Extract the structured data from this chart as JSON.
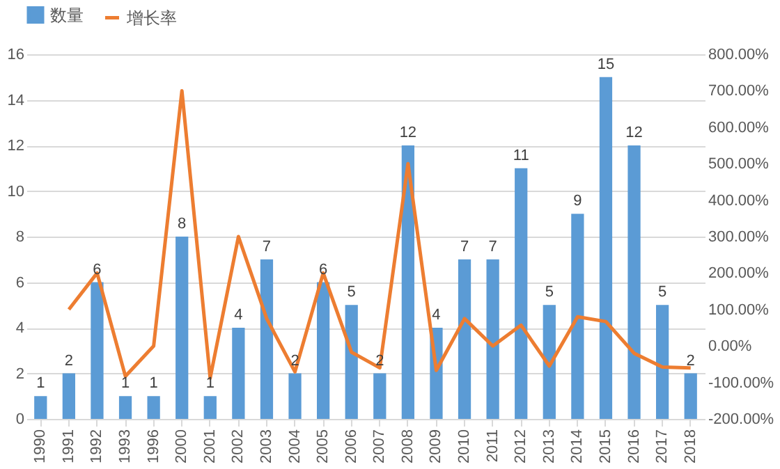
{
  "chart_data": {
    "type": "bar",
    "categories": [
      "1990",
      "1991",
      "1992",
      "1993",
      "1996",
      "2000",
      "2001",
      "2002",
      "2003",
      "2004",
      "2005",
      "2006",
      "2007",
      "2008",
      "2009",
      "2010",
      "2011",
      "2012",
      "2013",
      "2014",
      "2015",
      "2016",
      "2017",
      "2018"
    ],
    "series": [
      {
        "name": "数量",
        "color": "#5b9bd5",
        "values": [
          1,
          2,
          6,
          1,
          1,
          8,
          1,
          4,
          7,
          2,
          6,
          5,
          2,
          12,
          4,
          7,
          7,
          11,
          5,
          9,
          15,
          12,
          5,
          2
        ],
        "value_labels": [
          "1",
          "2",
          "6",
          "1",
          "1",
          "8",
          "1",
          "4",
          "7",
          "2",
          "6",
          "5",
          "2",
          "12",
          "4",
          "7",
          "7",
          "11",
          "5",
          "9",
          "15",
          "12",
          "5",
          "2"
        ]
      },
      {
        "name": "增长率",
        "type": "line",
        "axis": "y2",
        "color": "#ed7d31",
        "values": [
          null,
          100,
          200,
          -83,
          0,
          700,
          -88,
          300,
          75,
          -71,
          200,
          -17,
          -60,
          500,
          -67,
          75,
          0,
          57,
          -55,
          80,
          67,
          -20,
          -58,
          -60
        ]
      }
    ],
    "ylim": [
      0,
      16
    ],
    "yticks": [
      0,
      2,
      4,
      6,
      8,
      10,
      12,
      14,
      16
    ],
    "y2lim": [
      -200,
      800
    ],
    "y2ticks": [
      {
        "value": -200,
        "label": "-200.00%"
      },
      {
        "value": -100,
        "label": "-100.00%"
      },
      {
        "value": 0,
        "label": "0.00%"
      },
      {
        "value": 100,
        "label": "100.00%"
      },
      {
        "value": 200,
        "label": "200.00%"
      },
      {
        "value": 300,
        "label": "300.00%"
      },
      {
        "value": 400,
        "label": "400.00%"
      },
      {
        "value": 500,
        "label": "500.00%"
      },
      {
        "value": 600,
        "label": "600.00%"
      },
      {
        "value": 700,
        "label": "700.00%"
      },
      {
        "value": 800,
        "label": "800.00%"
      }
    ],
    "grid": "y",
    "legend": "top"
  }
}
